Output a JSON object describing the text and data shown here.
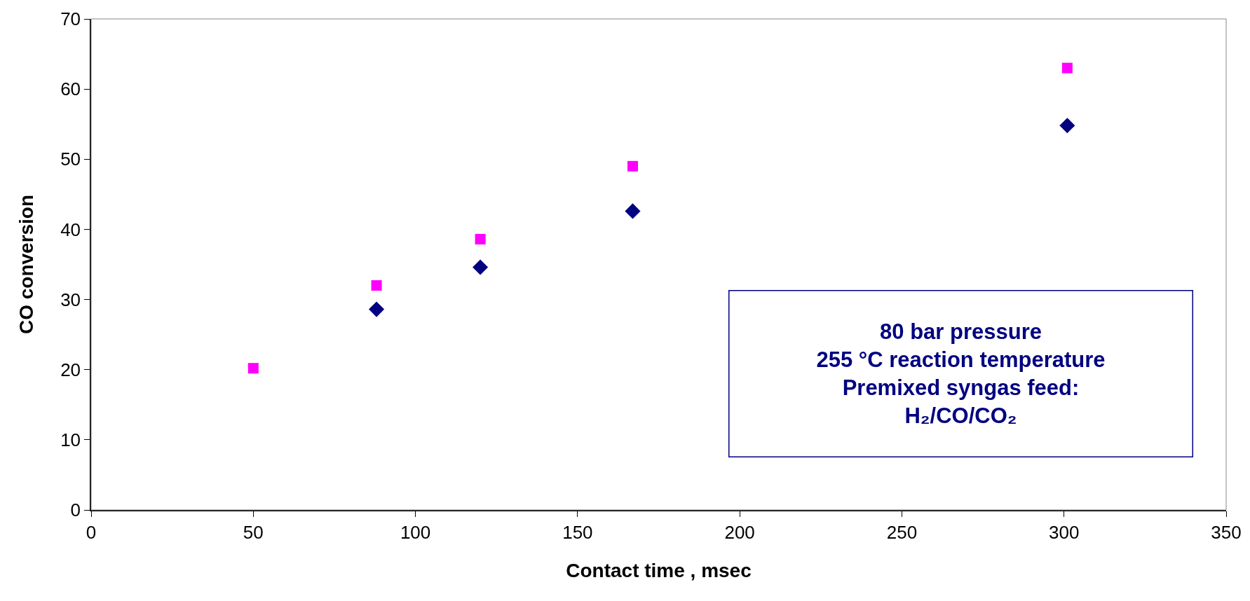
{
  "chart_data": {
    "type": "scatter",
    "xlabel": "Contact time , msec",
    "ylabel": "CO conversion",
    "series": [
      {
        "color": "#ff00ff",
        "marker": "square",
        "x": [
          50,
          88,
          120,
          167,
          301
        ],
        "values": [
          20.2,
          32.0,
          38.6,
          49.0,
          63.0
        ]
      },
      {
        "color": "#000080",
        "marker": "diamond",
        "x": [
          88,
          120,
          167,
          301
        ],
        "values": [
          28.6,
          34.6,
          42.6,
          54.8
        ]
      }
    ],
    "xlim": [
      0,
      350
    ],
    "xticks": [
      0,
      50,
      100,
      150,
      200,
      250,
      300,
      350
    ],
    "ylim": [
      0,
      70
    ],
    "yticks": [
      0,
      10,
      20,
      30,
      40,
      50,
      60,
      70
    ],
    "annotations": [
      "80 bar pressure\n255 °C reaction temperature\nPremixed syngas feed:\nH₂/CO/CO₂"
    ]
  }
}
